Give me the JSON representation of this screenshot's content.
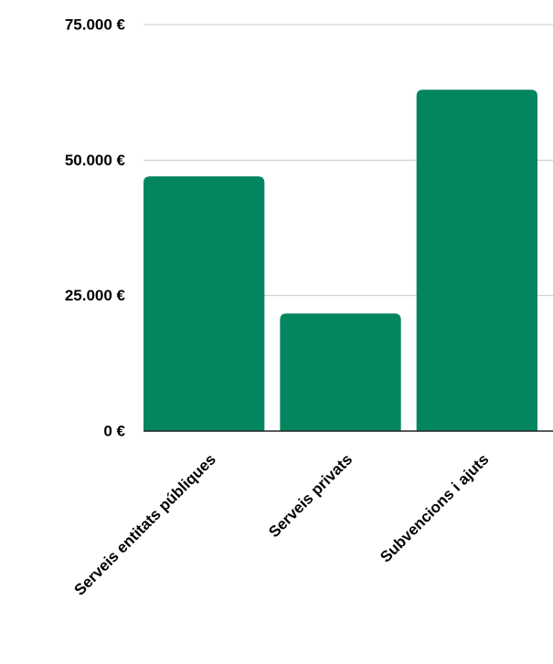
{
  "chart_data": {
    "type": "bar",
    "title": "",
    "xlabel": "",
    "ylabel": "",
    "categories": [
      "Serveis entitats públiques",
      "Serveis privats",
      "Subvencions i ajuts"
    ],
    "values": [
      47000,
      21700,
      63000
    ],
    "ylim": [
      0,
      75000
    ],
    "yticks": [
      0,
      25000,
      50000,
      75000
    ],
    "ytick_labels": [
      "0 €",
      "25.000 €",
      "50.000 €",
      "75.000 €"
    ],
    "grid": true,
    "legend": "none",
    "bar_color": "#03865F"
  }
}
